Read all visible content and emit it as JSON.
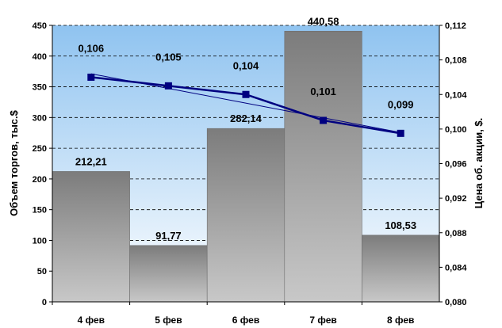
{
  "chart_data": {
    "type": "bar+line",
    "categories": [
      "4 фев",
      "5 фев",
      "6 фев",
      "7 фев",
      "8 фев"
    ],
    "series": [
      {
        "type": "bar",
        "axis": "left",
        "values": [
          212.21,
          91.77,
          282.14,
          440.58,
          108.53
        ],
        "labels": [
          "212,21",
          "91,77",
          "282,14",
          "440,58",
          "108,53"
        ],
        "color": "#9a9a9a"
      },
      {
        "type": "line",
        "axis": "right",
        "values": [
          0.106,
          0.105,
          0.104,
          0.101,
          0.0995
        ],
        "labels": [
          "0,106",
          "0,105",
          "0,104",
          "0,101",
          "0,099"
        ],
        "color": "#000080",
        "marker": "square"
      }
    ],
    "trendline": {
      "color": "#000080",
      "start": 0.1064,
      "end": 0.0996
    },
    "ylabel": "Объем торгов, тыс.$",
    "y2label": "Цена об. акции,  $.",
    "ylim": [
      0,
      450
    ],
    "y2lim": [
      0.08,
      0.112
    ],
    "yticks": [
      "0",
      "50",
      "100",
      "150",
      "200",
      "250",
      "300",
      "350",
      "400",
      "450"
    ],
    "y2ticks": [
      "0,080",
      "0,084",
      "0,088",
      "0,092",
      "0,096",
      "0,100",
      "0,104",
      "0,108",
      "0,112"
    ],
    "grid": true,
    "legend": "none",
    "background_gradient": [
      "#8fc3f0",
      "#ffffff"
    ]
  }
}
